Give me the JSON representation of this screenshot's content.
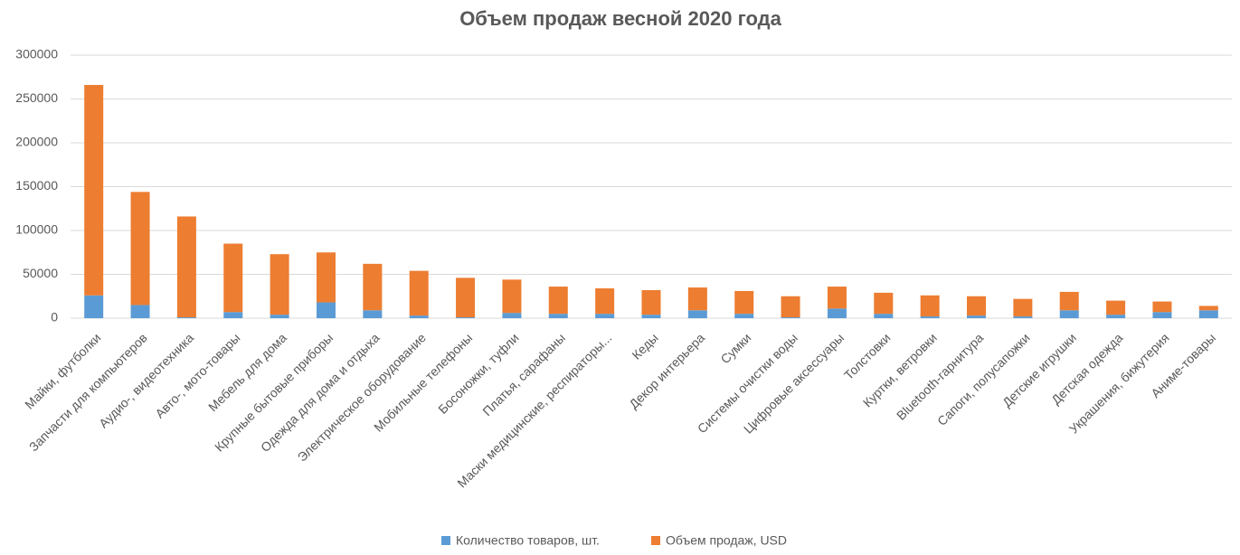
{
  "chart_data": {
    "type": "stacked_bar",
    "title": "Объем продаж весной 2020 года",
    "categories": [
      "Майки, футболки",
      "Запчасти для компьютеров",
      "Аудио-, видеотехника",
      "Авто-, мото-товары",
      "Мебель для дома",
      "Крупные бытовые приборы",
      "Одежда для дома и отдыха",
      "Электрическое оборудование",
      "Мобильные телефоны",
      "Босоножки, туфли",
      "Платья, сарафаны",
      "Маски медицинские, респираторы...",
      "Кеды",
      "Декор интерьера",
      "Сумки",
      "Системы очистки воды",
      "Цифровые аксессуары",
      "Толстовки",
      "Куртки, ветровки",
      "Bluetooth-гарнитура",
      "Сапоги, полусапожки",
      "Детские игрушки",
      "Детская одежда",
      "Украшения, бижутерия",
      "Аниме-товары"
    ],
    "series": [
      {
        "name": "Количество товаров, шт.",
        "color": "#5b9bd5",
        "values": [
          26000,
          15000,
          1000,
          7000,
          4000,
          18000,
          9000,
          3000,
          1000,
          6000,
          5000,
          5000,
          4000,
          9000,
          5000,
          1000,
          11000,
          5000,
          2000,
          3000,
          2000,
          9000,
          4000,
          7000,
          9000
        ]
      },
      {
        "name": "Объем продаж, USD",
        "color": "#ed7d31",
        "values": [
          240000,
          129000,
          115000,
          78000,
          69000,
          57000,
          53000,
          51000,
          45000,
          38000,
          31000,
          29000,
          28000,
          26000,
          26000,
          24000,
          25000,
          24000,
          24000,
          22000,
          20000,
          21000,
          16000,
          12000,
          5000
        ]
      }
    ],
    "ylim": [
      0,
      300000
    ],
    "yticks": [
      0,
      50000,
      100000,
      150000,
      200000,
      250000,
      300000
    ],
    "grid": true,
    "legend": "bottom"
  }
}
